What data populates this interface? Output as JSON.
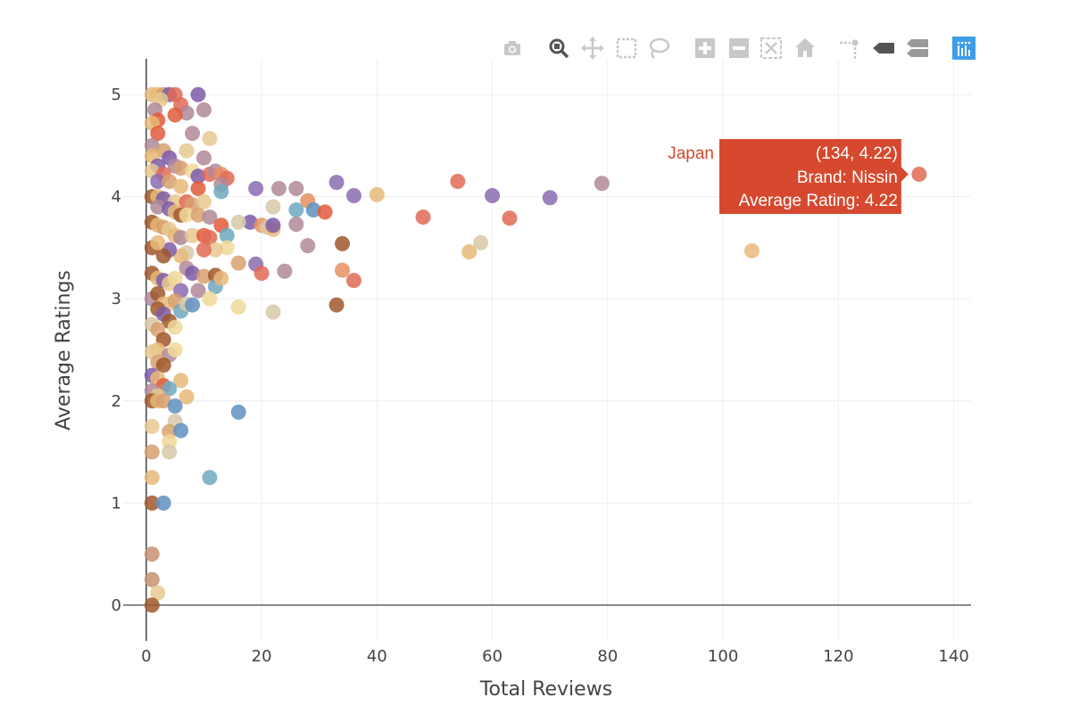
{
  "toolbar": {
    "buttons": [
      {
        "name": "camera-icon",
        "active": false
      },
      {
        "name": "zoom-icon",
        "active": true
      },
      {
        "name": "pan-icon",
        "active": false
      },
      {
        "name": "box-select-icon",
        "active": false
      },
      {
        "name": "lasso-select-icon",
        "active": false
      },
      {
        "name": "zoom-in-icon",
        "active": false
      },
      {
        "name": "zoom-out-icon",
        "active": false
      },
      {
        "name": "autoscale-icon",
        "active": false
      },
      {
        "name": "reset-axes-icon",
        "active": false
      },
      {
        "name": "spike-lines-icon",
        "active": false
      },
      {
        "name": "hover-closest-icon",
        "active": false
      },
      {
        "name": "hover-compare-icon",
        "active": false
      },
      {
        "name": "plotly-logo-icon",
        "active": false
      }
    ]
  },
  "colors": {
    "hover_bg": "#d6492e",
    "hover_name": "#d6492e",
    "grid": "#eeeeee",
    "axis": "#444444",
    "active_icon": "#555555",
    "inactive_icon": "#c8c8c8",
    "logo": "#3d9de6"
  },
  "chart_data": {
    "type": "scatter",
    "title": "",
    "xlabel": "Total Reviews",
    "ylabel": "Average Ratings",
    "xlim": [
      -4,
      143
    ],
    "ylim": [
      -0.35,
      5.35
    ],
    "x_ticks": [
      0,
      20,
      40,
      60,
      80,
      100,
      120,
      140
    ],
    "y_ticks": [
      0,
      1,
      2,
      3,
      4,
      5
    ],
    "grid": true,
    "palette": [
      "#e06a55",
      "#7c5aa8",
      "#e8b878",
      "#b08898",
      "#d8a070",
      "#a0582c",
      "#e8c890",
      "#f0d898",
      "#d8c8a8",
      "#6090c0",
      "#e05a3a",
      "#c89070",
      "#8a6cb0",
      "#e89060",
      "#70a8c0"
    ],
    "points": [
      [
        1,
        5,
        2
      ],
      [
        2,
        5,
        2
      ],
      [
        3,
        5,
        4
      ],
      [
        4,
        5,
        1
      ],
      [
        5,
        5,
        0
      ],
      [
        9,
        5,
        1
      ],
      [
        2.5,
        4.95,
        6
      ],
      [
        6,
        4.9,
        0
      ],
      [
        1.5,
        4.85,
        3
      ],
      [
        7,
        4.82,
        3
      ],
      [
        10,
        4.85,
        3
      ],
      [
        5,
        4.8,
        10
      ],
      [
        2,
        4.75,
        10
      ],
      [
        1,
        4.72,
        2
      ],
      [
        2,
        4.62,
        10
      ],
      [
        8,
        4.62,
        3
      ],
      [
        11,
        4.57,
        6
      ],
      [
        1,
        4.5,
        3
      ],
      [
        3,
        4.45,
        4
      ],
      [
        7,
        4.45,
        6
      ],
      [
        1,
        4.4,
        2
      ],
      [
        4,
        4.38,
        1
      ],
      [
        10,
        4.38,
        3
      ],
      [
        2,
        4.3,
        1
      ],
      [
        5,
        4.3,
        3
      ],
      [
        6,
        4.28,
        4
      ],
      [
        8,
        4.25,
        7
      ],
      [
        1,
        4.25,
        6
      ],
      [
        3,
        4.22,
        0
      ],
      [
        9,
        4.2,
        1
      ],
      [
        11,
        4.22,
        0
      ],
      [
        12,
        4.25,
        3
      ],
      [
        13,
        4.22,
        13
      ],
      [
        14,
        4.18,
        0
      ],
      [
        2,
        4.15,
        12
      ],
      [
        4,
        4.15,
        4
      ],
      [
        6,
        4.1,
        2
      ],
      [
        9,
        4.08,
        10
      ],
      [
        13,
        4.12,
        3
      ],
      [
        13,
        4.05,
        14
      ],
      [
        19,
        4.08,
        12
      ],
      [
        23,
        4.08,
        3
      ],
      [
        26,
        4.08,
        3
      ],
      [
        33,
        4.14,
        12
      ],
      [
        36,
        4.01,
        12
      ],
      [
        40,
        4.02,
        2
      ],
      [
        54,
        4.15,
        0
      ],
      [
        60,
        4.01,
        12
      ],
      [
        70,
        3.99,
        12
      ],
      [
        79,
        4.13,
        3
      ],
      [
        134,
        4.22,
        0
      ],
      [
        1,
        4,
        5
      ],
      [
        2,
        4,
        2
      ],
      [
        3,
        3.98,
        1
      ],
      [
        5,
        3.95,
        6
      ],
      [
        7,
        3.95,
        0
      ],
      [
        8,
        3.92,
        4
      ],
      [
        10,
        3.95,
        6
      ],
      [
        2,
        3.9,
        3
      ],
      [
        4,
        3.88,
        1
      ],
      [
        5,
        3.85,
        2
      ],
      [
        6,
        3.82,
        5
      ],
      [
        7,
        3.82,
        7
      ],
      [
        9,
        3.82,
        4
      ],
      [
        11,
        3.8,
        3
      ],
      [
        18,
        3.75,
        1
      ],
      [
        20,
        3.72,
        13
      ],
      [
        22,
        3.9,
        8
      ],
      [
        26,
        3.87,
        14
      ],
      [
        28,
        3.96,
        13
      ],
      [
        29,
        3.87,
        9
      ],
      [
        31,
        3.85,
        10
      ],
      [
        48,
        3.8,
        0
      ],
      [
        63,
        3.79,
        0
      ],
      [
        16,
        3.75,
        8
      ],
      [
        21,
        3.7,
        8
      ],
      [
        1,
        3.75,
        5
      ],
      [
        2,
        3.72,
        2
      ],
      [
        3,
        3.7,
        4
      ],
      [
        4,
        3.68,
        6
      ],
      [
        5,
        3.62,
        2
      ],
      [
        6,
        3.6,
        3
      ],
      [
        8,
        3.62,
        6
      ],
      [
        10,
        3.62,
        10
      ],
      [
        11,
        3.6,
        0
      ],
      [
        13,
        3.72,
        10
      ],
      [
        14,
        3.62,
        14
      ],
      [
        14,
        3.5,
        7
      ],
      [
        12,
        3.48,
        6
      ],
      [
        10,
        3.48,
        0
      ],
      [
        7,
        3.45,
        8
      ],
      [
        6,
        3.42,
        2
      ],
      [
        4,
        3.48,
        1
      ],
      [
        3,
        3.42,
        5
      ],
      [
        1,
        3.5,
        5
      ],
      [
        2,
        3.55,
        2
      ],
      [
        22,
        3.68,
        2
      ],
      [
        22,
        3.72,
        1
      ],
      [
        26,
        3.73,
        3
      ],
      [
        28,
        3.52,
        3
      ],
      [
        34,
        3.54,
        5
      ],
      [
        58,
        3.55,
        8
      ],
      [
        56,
        3.46,
        2
      ],
      [
        105,
        3.47,
        2
      ],
      [
        16,
        3.35,
        4
      ],
      [
        19,
        3.34,
        12
      ],
      [
        20,
        3.25,
        0
      ],
      [
        24,
        3.27,
        3
      ],
      [
        34,
        3.28,
        13
      ],
      [
        36,
        3.18,
        0
      ],
      [
        1,
        3.25,
        5
      ],
      [
        2,
        3.2,
        2
      ],
      [
        3,
        3.18,
        1
      ],
      [
        4,
        3.15,
        6
      ],
      [
        5,
        3.2,
        7
      ],
      [
        7,
        3.3,
        3
      ],
      [
        8,
        3.25,
        1
      ],
      [
        10,
        3.22,
        4
      ],
      [
        12,
        3.23,
        5
      ],
      [
        12,
        3.12,
        14
      ],
      [
        13,
        3.2,
        2
      ],
      [
        6,
        3.08,
        12
      ],
      [
        9,
        3.08,
        3
      ],
      [
        11,
        3.0,
        7
      ],
      [
        1,
        3.0,
        3
      ],
      [
        2,
        3.05,
        5
      ],
      [
        3,
        2.95,
        2
      ],
      [
        4,
        2.95,
        6
      ],
      [
        5,
        2.98,
        4
      ],
      [
        6,
        2.88,
        14
      ],
      [
        7,
        2.95,
        8
      ],
      [
        8,
        2.94,
        9
      ],
      [
        16,
        2.92,
        7
      ],
      [
        22,
        2.87,
        8
      ],
      [
        33,
        2.94,
        5
      ],
      [
        2,
        2.9,
        5
      ],
      [
        3,
        2.85,
        1
      ],
      [
        4,
        2.78,
        5
      ],
      [
        1,
        2.75,
        8
      ],
      [
        2,
        2.7,
        4
      ],
      [
        5,
        2.72,
        7
      ],
      [
        3,
        2.6,
        5
      ],
      [
        2,
        2.5,
        2
      ],
      [
        4,
        2.45,
        3
      ],
      [
        5,
        2.5,
        7
      ],
      [
        1,
        2.48,
        6
      ],
      [
        2,
        2.38,
        4
      ],
      [
        3,
        2.35,
        5
      ],
      [
        1,
        2.25,
        1
      ],
      [
        2,
        2.22,
        2
      ],
      [
        6,
        2.2,
        2
      ],
      [
        3,
        2.15,
        10
      ],
      [
        4,
        2.12,
        14
      ],
      [
        1,
        2.1,
        3
      ],
      [
        2,
        2.05,
        6
      ],
      [
        1,
        2,
        5
      ],
      [
        2,
        2.0,
        2
      ],
      [
        3,
        2.0,
        4
      ],
      [
        7,
        2.04,
        2
      ],
      [
        5,
        1.95,
        9
      ],
      [
        16,
        1.89,
        9
      ],
      [
        5,
        1.8,
        8
      ],
      [
        1,
        1.75,
        6
      ],
      [
        4,
        1.7,
        4
      ],
      [
        6,
        1.71,
        9
      ],
      [
        4,
        1.6,
        7
      ],
      [
        4,
        1.5,
        8
      ],
      [
        1,
        1.5,
        4
      ],
      [
        1,
        1.25,
        2
      ],
      [
        11,
        1.25,
        14
      ],
      [
        1,
        1,
        5
      ],
      [
        3,
        1,
        9
      ],
      [
        1,
        0.5,
        11
      ],
      [
        1,
        0.25,
        11
      ],
      [
        2,
        0.12,
        6
      ],
      [
        1,
        0,
        5
      ]
    ],
    "hover": {
      "series_name": "Japan",
      "coords": "(134, 4.22)",
      "brand_line": "Brand:  Nissin",
      "rating_line": "Average Rating:  4.22",
      "point_x": 134,
      "point_y": 4.22
    }
  }
}
